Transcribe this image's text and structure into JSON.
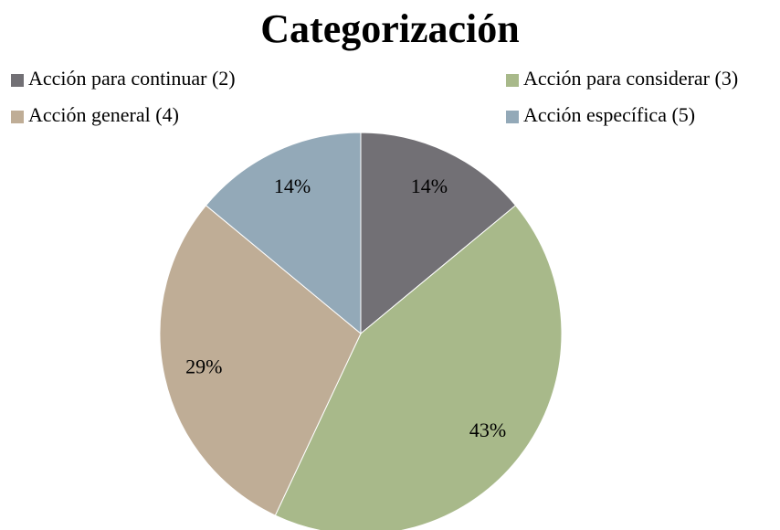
{
  "chart_data": {
    "type": "pie",
    "title": "Categorización",
    "categories": [
      "Acción para continuar (2)",
      "Acción para considerar (3)",
      "Acción general (4)",
      "Acción específica (5)"
    ],
    "values": [
      14,
      43,
      29,
      14
    ],
    "value_labels": [
      "14%",
      "43%",
      "29%",
      "14%"
    ],
    "colors": [
      "#727075",
      "#a8b98a",
      "#bfad96",
      "#93a9b8"
    ],
    "legend": "top"
  }
}
